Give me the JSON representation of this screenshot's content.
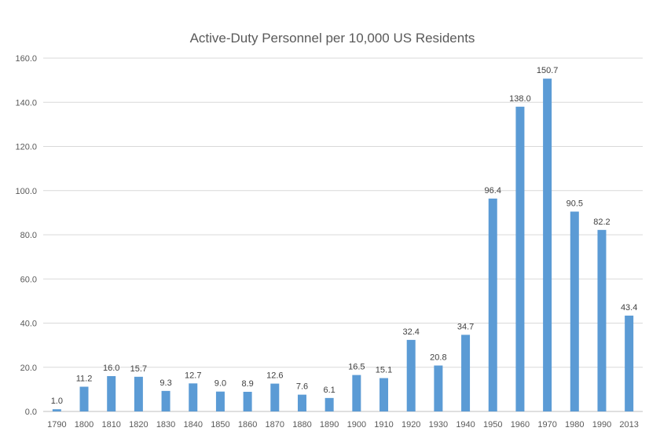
{
  "chart_data": {
    "type": "bar",
    "title": "Active-Duty Personnel per 10,000 US Residents",
    "xlabel": "",
    "ylabel": "",
    "categories": [
      "1790",
      "1800",
      "1810",
      "1820",
      "1830",
      "1840",
      "1850",
      "1860",
      "1870",
      "1880",
      "1890",
      "1900",
      "1910",
      "1920",
      "1930",
      "1940",
      "1950",
      "1960",
      "1970",
      "1980",
      "1990",
      "2013"
    ],
    "values": [
      1.0,
      11.2,
      16.0,
      15.7,
      9.3,
      12.7,
      9.0,
      8.9,
      12.6,
      7.6,
      6.1,
      16.5,
      15.1,
      32.4,
      20.8,
      34.7,
      96.4,
      138.0,
      150.7,
      90.5,
      82.2,
      43.4
    ],
    "data_labels": [
      "1.0",
      "11.2",
      "16.0",
      "15.7",
      "9.3",
      "12.7",
      "9.0",
      "8.9",
      "12.6",
      "7.6",
      "6.1",
      "16.5",
      "15.1",
      "32.4",
      "20.8",
      "34.7",
      "96.4",
      "138.0",
      "150.7",
      "90.5",
      "82.2",
      "43.4"
    ],
    "ylim": [
      0,
      160
    ],
    "yticks": [
      "0.0",
      "20.0",
      "40.0",
      "60.0",
      "80.0",
      "100.0",
      "120.0",
      "140.0",
      "160.0"
    ],
    "ytick_values": [
      0,
      20,
      40,
      60,
      80,
      100,
      120,
      140,
      160
    ],
    "grid": true,
    "legend": "none",
    "bar_color": "#5b9bd5"
  }
}
